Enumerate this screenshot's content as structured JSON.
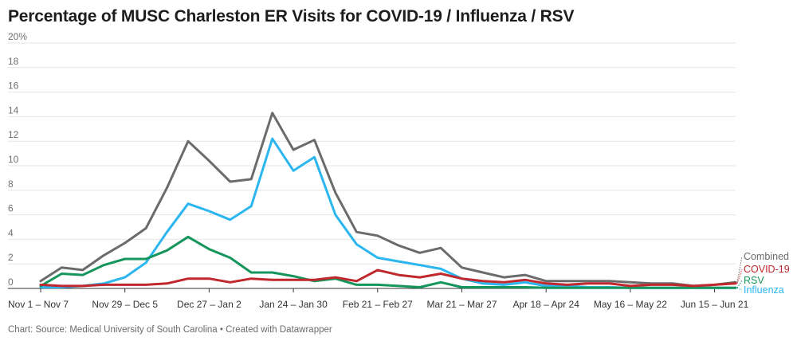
{
  "colors": {
    "combined": "#6b6b6b",
    "covid": "#c0282d",
    "rsv": "#16955c",
    "influenza": "#2cb6f0",
    "grid": "#e4e4e4",
    "axis": "#333333"
  },
  "footer": {
    "source": "Chart: Source: Medical University of South Carolina • Created with Datawrapper"
  },
  "chart_data": {
    "type": "line",
    "title": "Percentage of MUSC Charleston ER Visits for COVID-19 / Influenza / RSV",
    "xlabel": "",
    "ylabel": "",
    "ylim": [
      0,
      20
    ],
    "y_ticks": [
      "20%",
      "18",
      "16",
      "14",
      "12",
      "10",
      "8",
      "6",
      "4",
      "2",
      "0"
    ],
    "y_tick_values": [
      20,
      18,
      16,
      14,
      12,
      10,
      8,
      6,
      4,
      2,
      0
    ],
    "x_tick_labels": [
      {
        "label": "Nov 1 – Nov 7",
        "index": 0
      },
      {
        "label": "Nov 29 – Dec 5",
        "index": 4
      },
      {
        "label": "Dec 27 – Jan 2",
        "index": 8
      },
      {
        "label": "Jan 24 – Jan 30",
        "index": 12
      },
      {
        "label": "Feb 21 – Feb 27",
        "index": 16
      },
      {
        "label": "Mar 21 – Mar 27",
        "index": 20
      },
      {
        "label": "Apr 18 – Apr 24",
        "index": 24
      },
      {
        "label": "May 16 – May 22",
        "index": 28
      },
      {
        "label": "Jun 15 – Jun 21",
        "index": 32
      }
    ],
    "legend_position": "right",
    "series": [
      {
        "name": "Combined",
        "key": "combined",
        "values": [
          0.6,
          1.7,
          1.5,
          2.7,
          3.7,
          4.9,
          8.2,
          12.0,
          10.4,
          8.7,
          8.9,
          14.3,
          11.3,
          12.1,
          7.8,
          4.6,
          4.3,
          3.5,
          2.9,
          3.3,
          1.7,
          1.3,
          0.9,
          1.1,
          0.6,
          0.6,
          0.6,
          0.6,
          0.5,
          0.4,
          0.4,
          0.2,
          0.3,
          0.5
        ]
      },
      {
        "name": "COVID-19",
        "key": "covid",
        "values": [
          0.3,
          0.2,
          0.2,
          0.3,
          0.3,
          0.3,
          0.4,
          0.8,
          0.8,
          0.5,
          0.8,
          0.7,
          0.7,
          0.7,
          0.9,
          0.6,
          1.5,
          1.1,
          0.9,
          1.2,
          0.8,
          0.6,
          0.5,
          0.7,
          0.4,
          0.3,
          0.4,
          0.4,
          0.2,
          0.3,
          0.3,
          0.2,
          0.3,
          0.4
        ]
      },
      {
        "name": "RSV",
        "key": "rsv",
        "values": [
          0.2,
          1.2,
          1.1,
          1.9,
          2.4,
          2.4,
          3.1,
          4.2,
          3.2,
          2.5,
          1.3,
          1.3,
          1.0,
          0.6,
          0.8,
          0.3,
          0.3,
          0.2,
          0.1,
          0.5,
          0.1,
          0.1,
          0.1,
          0.1,
          0.05,
          0.05,
          0.05,
          0.05,
          0.05,
          0.05,
          0.05,
          0.05,
          0.05,
          0.05
        ]
      },
      {
        "name": "Influenza",
        "key": "influenza",
        "values": [
          0.1,
          0.1,
          0.2,
          0.4,
          0.9,
          2.1,
          4.6,
          6.9,
          6.3,
          5.6,
          6.7,
          12.2,
          9.6,
          10.7,
          6.0,
          3.6,
          2.5,
          2.2,
          1.9,
          1.6,
          0.8,
          0.4,
          0.3,
          0.5,
          0.2,
          0.2,
          0.1,
          0.1,
          0.05,
          0.05,
          0.05,
          0.05,
          0.05,
          0.05
        ]
      }
    ]
  }
}
